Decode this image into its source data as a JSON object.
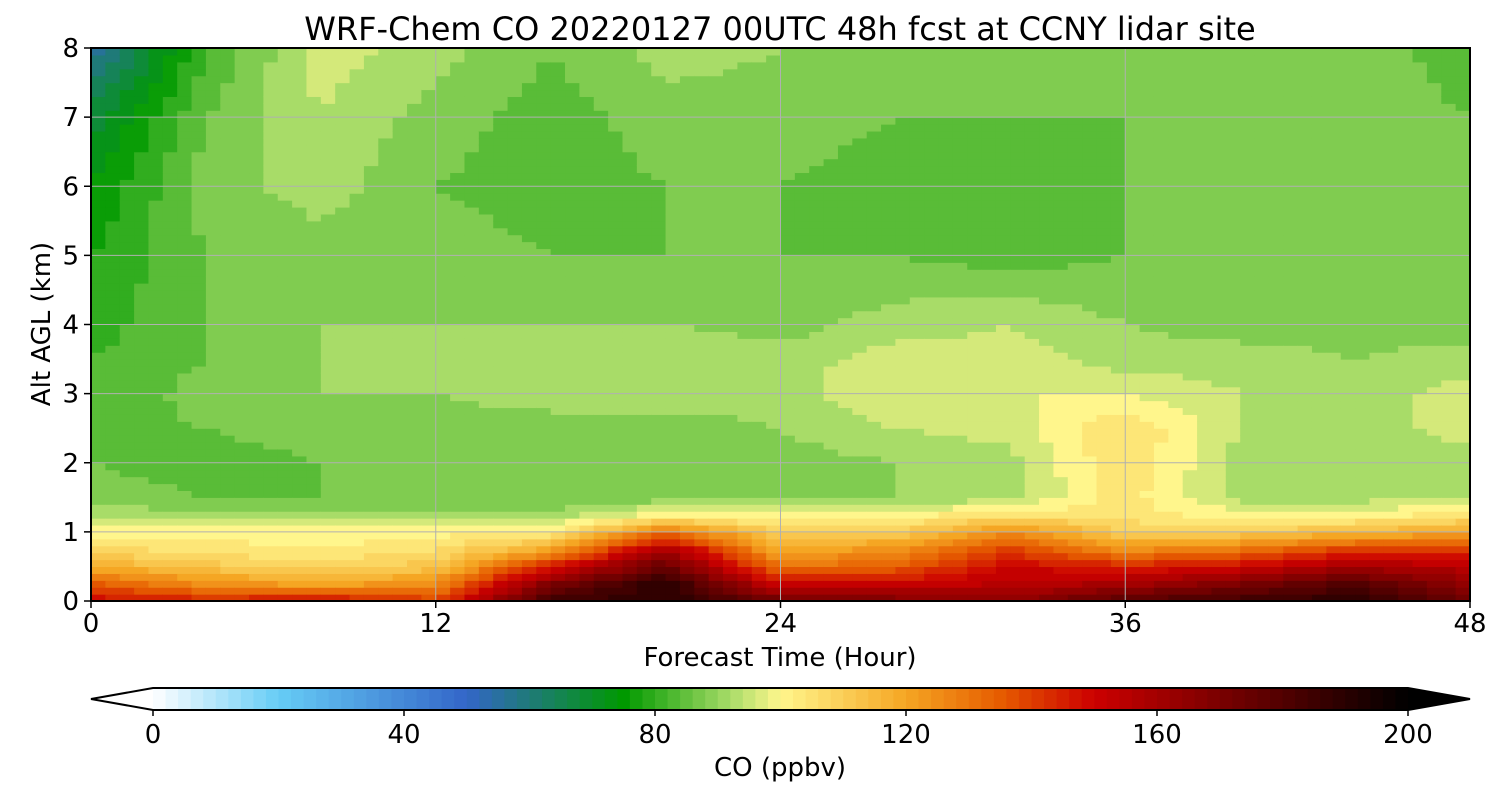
{
  "chart_data": {
    "type": "heatmap",
    "title": "WRF-Chem CO  20220127 00UTC 48h fcst at CCNY lidar site",
    "xlabel": "Forecast Time (Hour)",
    "ylabel": "Alt AGL (km)",
    "xlim": [
      0,
      48
    ],
    "ylim": [
      0,
      8
    ],
    "xticks": [
      0,
      12,
      24,
      36,
      48
    ],
    "yticks": [
      0,
      1,
      2,
      3,
      4,
      5,
      6,
      7,
      8
    ],
    "grid": true,
    "colorbar": {
      "label": "CO  (ppbv)",
      "range": [
        0,
        200
      ],
      "ticks": [
        0,
        40,
        80,
        120,
        160,
        200
      ],
      "extend": "both",
      "stops": [
        {
          "v": 0,
          "color": "#ffffff"
        },
        {
          "v": 20,
          "color": "#66ccf5"
        },
        {
          "v": 50,
          "color": "#3366c8"
        },
        {
          "v": 75,
          "color": "#009900"
        },
        {
          "v": 92,
          "color": "#a8dc68"
        },
        {
          "v": 100,
          "color": "#fff68c"
        },
        {
          "v": 120,
          "color": "#f5a623"
        },
        {
          "v": 135,
          "color": "#e65c00"
        },
        {
          "v": 150,
          "color": "#cc0000"
        },
        {
          "v": 175,
          "color": "#660000"
        },
        {
          "v": 200,
          "color": "#000000"
        }
      ]
    },
    "field": {
      "description_units": "CO mixing ratio (ppbv) on forecast-hour x altitude-km grid",
      "x": [
        0,
        4,
        8,
        12,
        16,
        20,
        24,
        28,
        32,
        36,
        40,
        44,
        48
      ],
      "y": [
        0,
        0.25,
        0.5,
        0.75,
        1.0,
        1.25,
        1.5,
        2,
        2.5,
        3,
        3.5,
        4,
        5,
        6,
        7,
        8
      ],
      "z": [
        [
          150,
          145,
          150,
          140,
          185,
          190,
          175,
          170,
          165,
          180,
          185,
          190,
          175
        ],
        [
          135,
          125,
          120,
          125,
          170,
          190,
          150,
          150,
          155,
          160,
          170,
          180,
          165
        ],
        [
          118,
          112,
          108,
          112,
          145,
          175,
          130,
          135,
          150,
          145,
          150,
          160,
          155
        ],
        [
          108,
          104,
          102,
          106,
          120,
          160,
          118,
          125,
          140,
          125,
          130,
          140,
          140
        ],
        [
          100,
          100,
          100,
          100,
          102,
          130,
          110,
          110,
          125,
          110,
          110,
          115,
          120
        ],
        [
          92,
          92,
          92,
          92,
          92,
          100,
          98,
          100,
          105,
          104,
          100,
          100,
          104
        ],
        [
          88,
          86,
          86,
          86,
          86,
          88,
          90,
          90,
          93,
          104,
          92,
          92,
          94
        ],
        [
          86,
          84,
          86,
          86,
          86,
          86,
          88,
          90,
          92,
          106,
          92,
          90,
          92
        ],
        [
          85,
          86,
          88,
          88,
          88,
          88,
          90,
          94,
          96,
          106,
          94,
          92,
          96
        ],
        [
          82,
          88,
          90,
          90,
          92,
          92,
          92,
          98,
          98,
          98,
          94,
          92,
          96
        ],
        [
          82,
          86,
          90,
          92,
          94,
          94,
          92,
          96,
          96,
          92,
          92,
          90,
          92
        ],
        [
          80,
          86,
          90,
          90,
          90,
          90,
          88,
          92,
          94,
          90,
          88,
          88,
          88
        ],
        [
          78,
          86,
          88,
          88,
          86,
          86,
          86,
          86,
          84,
          86,
          86,
          88,
          86
        ],
        [
          74,
          88,
          92,
          86,
          84,
          86,
          86,
          84,
          84,
          86,
          86,
          88,
          86
        ],
        [
          68,
          86,
          94,
          88,
          84,
          88,
          88,
          86,
          86,
          86,
          86,
          88,
          86
        ],
        [
          55,
          82,
          96,
          92,
          86,
          92,
          90,
          86,
          86,
          86,
          86,
          88,
          84
        ]
      ]
    }
  }
}
